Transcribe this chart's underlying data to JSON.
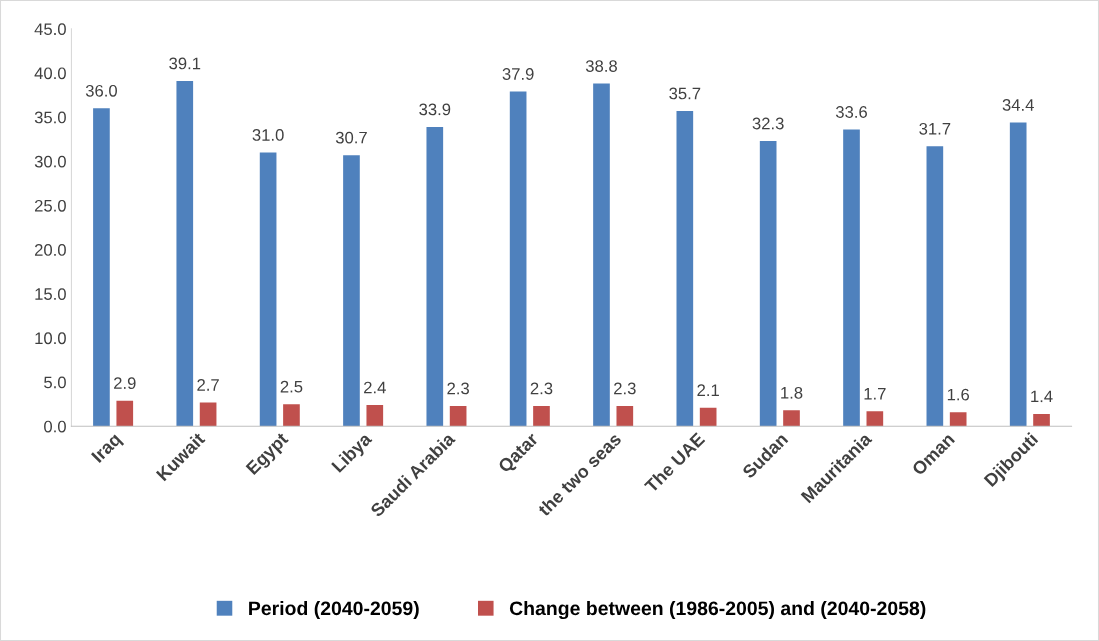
{
  "chart_data": {
    "type": "bar",
    "categories": [
      "Iraq",
      "Kuwait",
      "Egypt",
      "Libya",
      "Saudi Arabia",
      "Qatar",
      "the two seas",
      "The UAE",
      "Sudan",
      "Mauritania",
      "Oman",
      "Djibouti"
    ],
    "series": [
      {
        "name": "Period (2040-2059)",
        "color": "#4f81bd",
        "values": [
          36.0,
          39.1,
          31.0,
          30.7,
          33.9,
          37.9,
          38.8,
          35.7,
          32.3,
          33.6,
          31.7,
          34.4
        ],
        "value_labels": [
          "36.0",
          "39.1",
          "31.0",
          "30.7",
          "33.9",
          "37.9",
          "38.8",
          "35.7",
          "32.3",
          "33.6",
          "31.7",
          "34.4"
        ]
      },
      {
        "name": "Change between (1986-2005) and (2040-2058)",
        "color": "#c0504d",
        "values": [
          2.9,
          2.7,
          2.5,
          2.4,
          2.3,
          2.3,
          2.3,
          2.1,
          1.8,
          1.7,
          1.6,
          1.4
        ],
        "value_labels": [
          "2.9",
          "2.7",
          "2.5",
          "2.4",
          "2.3",
          "2.3",
          "2.3",
          "2.1",
          "1.8",
          "1.7",
          "1.6",
          "1.4"
        ]
      }
    ],
    "ylim": [
      0,
      45
    ],
    "yticks": [
      {
        "value": 0,
        "label": "0.0"
      },
      {
        "value": 5,
        "label": "5.0"
      },
      {
        "value": 10,
        "label": "10.0"
      },
      {
        "value": 15,
        "label": "15.0"
      },
      {
        "value": 20,
        "label": "20.0"
      },
      {
        "value": 25,
        "label": "25.0"
      },
      {
        "value": 30,
        "label": "30.0"
      },
      {
        "value": 35,
        "label": "35.0"
      },
      {
        "value": 40,
        "label": "40.0"
      },
      {
        "value": 45,
        "label": "45.0"
      }
    ],
    "grid": false,
    "legend": "bottom"
  }
}
